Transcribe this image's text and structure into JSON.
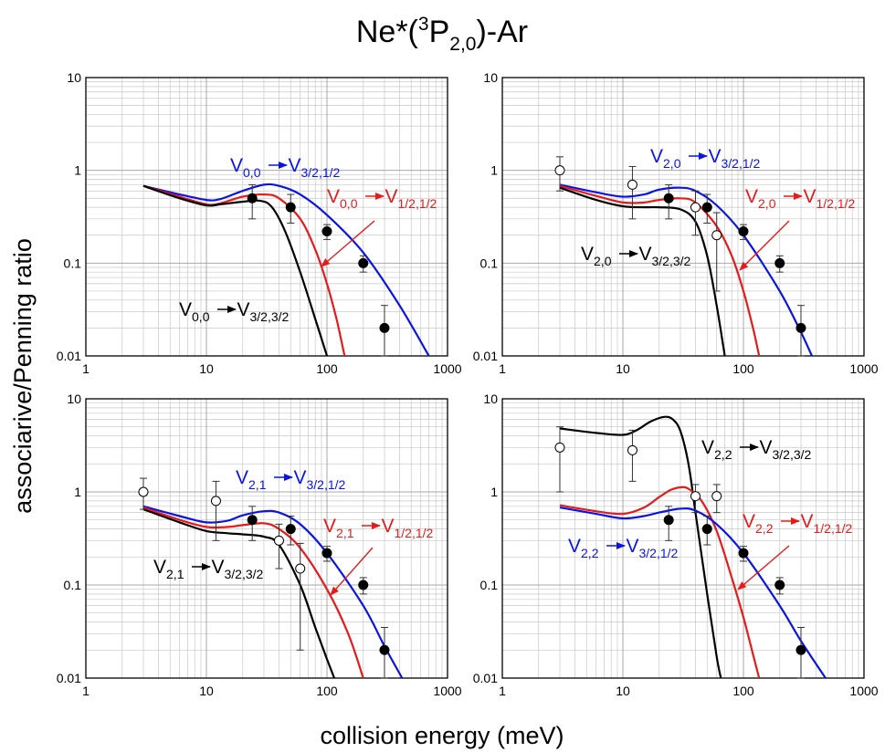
{
  "figure": {
    "title": {
      "main": "Ne*(",
      "sup": "3",
      "mid": "P",
      "sub": "2,0",
      "end": ")-Ar"
    },
    "xlabel": "collision energy (meV)",
    "ylabel": "associarive/Penning ratio"
  },
  "colors": {
    "blue": "#0a14e6",
    "red": "#e61a1a",
    "black": "#000000",
    "grid": "#c8c8c8"
  },
  "chart_data": [
    {
      "type": "line",
      "xscale": "log",
      "yscale": "log",
      "xlim": [
        1,
        1000
      ],
      "ylim": [
        0.01,
        10
      ],
      "xticks": [
        "1",
        "10",
        "100",
        "1000"
      ],
      "yticks": [
        "0.01",
        "0.1",
        "1",
        "10"
      ],
      "series": [
        {
          "color": "blue",
          "label": {
            "v": "V",
            "vs": "0,0",
            "w": "V",
            "ws": "3/2,1/2"
          },
          "x": [
            3,
            6,
            10,
            13,
            20,
            30,
            40,
            60,
            100,
            200,
            400,
            700
          ],
          "y": [
            0.68,
            0.55,
            0.48,
            0.49,
            0.6,
            0.7,
            0.68,
            0.55,
            0.33,
            0.13,
            0.035,
            0.01
          ]
        },
        {
          "color": "red",
          "label": {
            "v": "V",
            "vs": "0,0",
            "w": "V",
            "ws": "1/2,1/2"
          },
          "x": [
            3,
            6,
            10,
            13,
            20,
            30,
            40,
            60,
            80,
            100,
            120,
            140
          ],
          "y": [
            0.68,
            0.52,
            0.43,
            0.44,
            0.52,
            0.55,
            0.5,
            0.3,
            0.14,
            0.06,
            0.025,
            0.01
          ]
        },
        {
          "color": "black",
          "label": {
            "v": "V",
            "vs": "0,0",
            "w": "V",
            "ws": "3/2,3/2"
          },
          "x": [
            3,
            6,
            10,
            13,
            20,
            28,
            35,
            45,
            60,
            80,
            100
          ],
          "y": [
            0.68,
            0.5,
            0.42,
            0.43,
            0.46,
            0.47,
            0.4,
            0.22,
            0.08,
            0.025,
            0.01
          ]
        }
      ],
      "markers": [
        {
          "x": 24,
          "y": 0.5,
          "ylo": 0.3,
          "yhi": 0.7,
          "filled": true
        },
        {
          "x": 50,
          "y": 0.4,
          "ylo": 0.27,
          "yhi": 0.55,
          "filled": true
        },
        {
          "x": 100,
          "y": 0.22,
          "ylo": 0.18,
          "yhi": 0.26,
          "filled": true
        },
        {
          "x": 200,
          "y": 0.1,
          "ylo": 0.08,
          "yhi": 0.12,
          "filled": true
        },
        {
          "x": 300,
          "y": 0.02,
          "ylo": 0.01,
          "yhi": 0.035,
          "filled": true
        }
      ]
    },
    {
      "type": "line",
      "xscale": "log",
      "yscale": "log",
      "xlim": [
        1,
        1000
      ],
      "ylim": [
        0.01,
        10
      ],
      "xticks": [
        "1",
        "10",
        "100",
        "1000"
      ],
      "yticks": [
        "0.01",
        "0.1",
        "1",
        "10"
      ],
      "series": [
        {
          "color": "blue",
          "label": {
            "v": "V",
            "vs": "2,0",
            "w": "V",
            "ws": "3/2,1/2"
          },
          "x": [
            3,
            6,
            10,
            15,
            20,
            30,
            40,
            60,
            100,
            200,
            300,
            370
          ],
          "y": [
            0.7,
            0.58,
            0.52,
            0.55,
            0.62,
            0.65,
            0.6,
            0.42,
            0.2,
            0.05,
            0.018,
            0.01
          ]
        },
        {
          "color": "red",
          "label": {
            "v": "V",
            "vs": "2,0",
            "w": "V",
            "ws": "1/2,1/2"
          },
          "x": [
            3,
            6,
            10,
            15,
            20,
            30,
            40,
            60,
            80,
            100,
            120,
            135
          ],
          "y": [
            0.68,
            0.53,
            0.45,
            0.45,
            0.48,
            0.5,
            0.45,
            0.25,
            0.12,
            0.05,
            0.02,
            0.01
          ]
        },
        {
          "color": "black",
          "label": {
            "v": "V",
            "vs": "2,0",
            "w": "V",
            "ws": "3/2,3/2"
          },
          "x": [
            3,
            6,
            10,
            15,
            20,
            30,
            40,
            50,
            60,
            70
          ],
          "y": [
            0.65,
            0.48,
            0.41,
            0.4,
            0.4,
            0.38,
            0.28,
            0.12,
            0.035,
            0.01
          ]
        }
      ],
      "markers": [
        {
          "x": 3,
          "y": 1.0,
          "ylo": 0.6,
          "yhi": 1.4,
          "filled": false
        },
        {
          "x": 12,
          "y": 0.7,
          "ylo": 0.3,
          "yhi": 1.1,
          "filled": false
        },
        {
          "x": 24,
          "y": 0.5,
          "ylo": 0.3,
          "yhi": 0.7,
          "filled": true
        },
        {
          "x": 40,
          "y": 0.4,
          "ylo": 0.2,
          "yhi": 0.6,
          "filled": false
        },
        {
          "x": 50,
          "y": 0.4,
          "ylo": 0.27,
          "yhi": 0.55,
          "filled": true
        },
        {
          "x": 60,
          "y": 0.2,
          "ylo": 0.05,
          "yhi": 0.35,
          "filled": false
        },
        {
          "x": 100,
          "y": 0.22,
          "ylo": 0.18,
          "yhi": 0.26,
          "filled": true
        },
        {
          "x": 200,
          "y": 0.1,
          "ylo": 0.08,
          "yhi": 0.12,
          "filled": true
        },
        {
          "x": 300,
          "y": 0.02,
          "ylo": 0.01,
          "yhi": 0.035,
          "filled": true
        }
      ]
    },
    {
      "type": "line",
      "xscale": "log",
      "yscale": "log",
      "xlim": [
        1,
        1000
      ],
      "ylim": [
        0.01,
        10
      ],
      "xticks": [
        "1",
        "10",
        "100",
        "1000"
      ],
      "yticks": [
        "0.01",
        "0.1",
        "1",
        "10"
      ],
      "series": [
        {
          "color": "blue",
          "label": {
            "v": "V",
            "vs": "2,1",
            "w": "V",
            "ws": "3/2,1/2"
          },
          "x": [
            3,
            6,
            10,
            15,
            20,
            30,
            40,
            60,
            100,
            200,
            300,
            420
          ],
          "y": [
            0.7,
            0.55,
            0.47,
            0.49,
            0.56,
            0.62,
            0.6,
            0.45,
            0.22,
            0.06,
            0.022,
            0.01
          ]
        },
        {
          "color": "red",
          "label": {
            "v": "V",
            "vs": "2,1",
            "w": "V",
            "ws": "1/2,1/2"
          },
          "x": [
            3,
            6,
            10,
            15,
            20,
            30,
            40,
            60,
            100,
            150,
            200
          ],
          "y": [
            0.68,
            0.5,
            0.42,
            0.42,
            0.44,
            0.46,
            0.4,
            0.25,
            0.09,
            0.03,
            0.01
          ]
        },
        {
          "color": "black",
          "label": {
            "v": "V",
            "vs": "2,1",
            "w": "V",
            "ws": "3/2,3/2"
          },
          "x": [
            3,
            6,
            10,
            15,
            20,
            30,
            40,
            60,
            80,
            100,
            115
          ],
          "y": [
            0.65,
            0.47,
            0.38,
            0.36,
            0.35,
            0.33,
            0.27,
            0.1,
            0.035,
            0.016,
            0.01
          ]
        }
      ],
      "markers": [
        {
          "x": 3,
          "y": 1.0,
          "ylo": 0.65,
          "yhi": 1.4,
          "filled": false
        },
        {
          "x": 12,
          "y": 0.8,
          "ylo": 0.3,
          "yhi": 1.3,
          "filled": false
        },
        {
          "x": 24,
          "y": 0.5,
          "ylo": 0.3,
          "yhi": 0.7,
          "filled": true
        },
        {
          "x": 40,
          "y": 0.3,
          "ylo": 0.15,
          "yhi": 0.45,
          "filled": false
        },
        {
          "x": 50,
          "y": 0.4,
          "ylo": 0.27,
          "yhi": 0.55,
          "filled": true
        },
        {
          "x": 60,
          "y": 0.15,
          "ylo": 0.02,
          "yhi": 0.28,
          "filled": false
        },
        {
          "x": 100,
          "y": 0.22,
          "ylo": 0.18,
          "yhi": 0.26,
          "filled": true
        },
        {
          "x": 200,
          "y": 0.1,
          "ylo": 0.08,
          "yhi": 0.12,
          "filled": true
        },
        {
          "x": 300,
          "y": 0.02,
          "ylo": 0.01,
          "yhi": 0.035,
          "filled": true
        }
      ]
    },
    {
      "type": "line",
      "xscale": "log",
      "yscale": "log",
      "xlim": [
        1,
        1000
      ],
      "ylim": [
        0.01,
        10
      ],
      "xticks": [
        "1",
        "10",
        "100",
        "1000"
      ],
      "yticks": [
        "0.01",
        "0.1",
        "1",
        "10"
      ],
      "series": [
        {
          "color": "black",
          "label": {
            "v": "V",
            "vs": "2,2",
            "w": "V",
            "ws": "3/2,3/2"
          },
          "x": [
            3,
            6,
            10,
            13,
            17,
            22,
            26,
            30,
            35,
            40,
            50,
            60,
            65
          ],
          "y": [
            4.8,
            4.3,
            4.1,
            4.6,
            5.7,
            6.4,
            6.0,
            4.5,
            2.0,
            0.6,
            0.08,
            0.017,
            0.01
          ]
        },
        {
          "color": "red",
          "label": {
            "v": "V",
            "vs": "2,2",
            "w": "V",
            "ws": "1/2,1/2"
          },
          "x": [
            3,
            6,
            10,
            15,
            20,
            25,
            30,
            35,
            45,
            60,
            80,
            100,
            120,
            135
          ],
          "y": [
            0.72,
            0.62,
            0.58,
            0.68,
            0.88,
            1.05,
            1.12,
            1.08,
            0.8,
            0.38,
            0.12,
            0.045,
            0.018,
            0.01
          ]
        },
        {
          "color": "blue",
          "label": {
            "v": "V",
            "vs": "2,2",
            "w": "V",
            "ws": "3/2,1/2"
          },
          "x": [
            3,
            6,
            10,
            15,
            20,
            30,
            40,
            60,
            100,
            200,
            300,
            480
          ],
          "y": [
            0.68,
            0.58,
            0.52,
            0.55,
            0.6,
            0.66,
            0.63,
            0.45,
            0.22,
            0.06,
            0.025,
            0.01
          ]
        }
      ],
      "markers": [
        {
          "x": 3,
          "y": 3.0,
          "ylo": 1.0,
          "yhi": 5.0,
          "filled": false
        },
        {
          "x": 12,
          "y": 2.8,
          "ylo": 1.3,
          "yhi": 4.6,
          "filled": false
        },
        {
          "x": 24,
          "y": 0.5,
          "ylo": 0.3,
          "yhi": 0.7,
          "filled": true
        },
        {
          "x": 40,
          "y": 0.9,
          "ylo": 0.6,
          "yhi": 1.2,
          "filled": false
        },
        {
          "x": 50,
          "y": 0.4,
          "ylo": 0.27,
          "yhi": 0.55,
          "filled": true
        },
        {
          "x": 60,
          "y": 0.9,
          "ylo": 0.6,
          "yhi": 1.2,
          "filled": false
        },
        {
          "x": 100,
          "y": 0.22,
          "ylo": 0.18,
          "yhi": 0.26,
          "filled": true
        },
        {
          "x": 200,
          "y": 0.1,
          "ylo": 0.08,
          "yhi": 0.12,
          "filled": true
        },
        {
          "x": 300,
          "y": 0.02,
          "ylo": 0.01,
          "yhi": 0.035,
          "filled": true
        }
      ]
    }
  ]
}
